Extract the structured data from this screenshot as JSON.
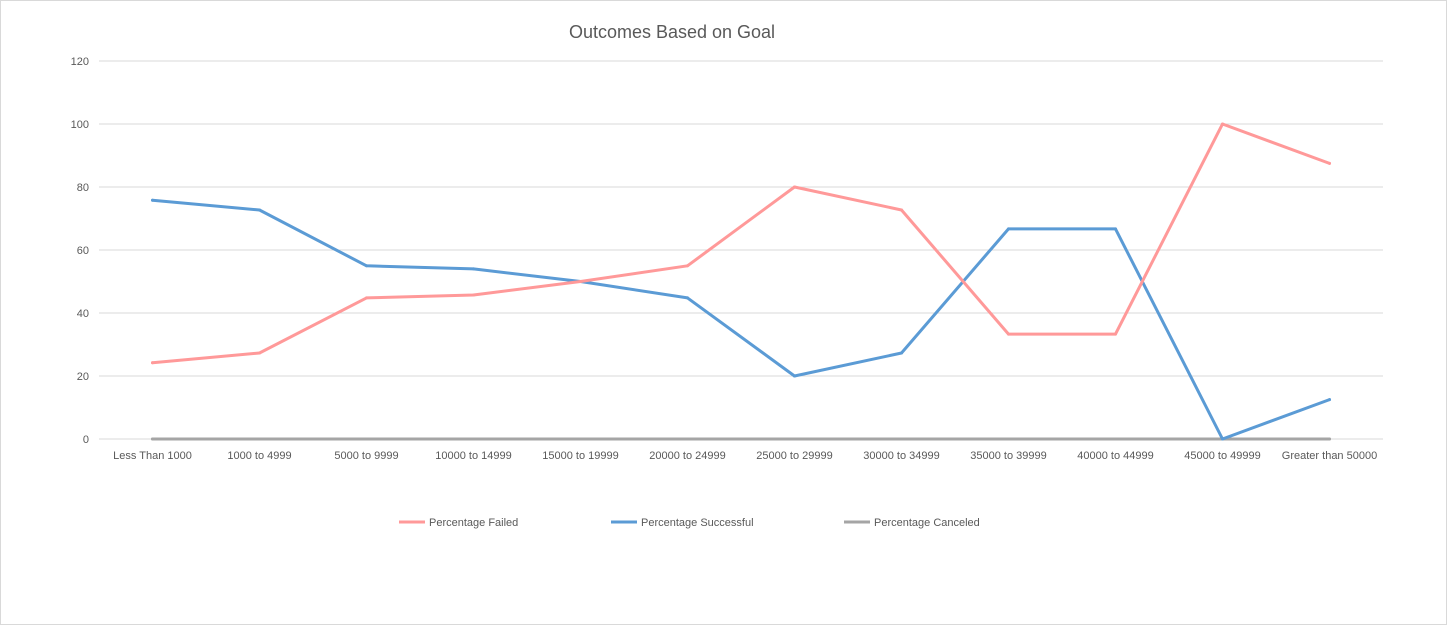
{
  "chart_data": {
    "type": "line",
    "title": "Outcomes Based on Goal",
    "xlabel": "",
    "ylabel": "",
    "ylim": [
      0,
      120
    ],
    "yticks": [
      0,
      20,
      40,
      60,
      80,
      100,
      120
    ],
    "grid": true,
    "legend_position": "bottom",
    "categories": [
      "Less Than 1000",
      "1000 to 4999",
      "5000 to 9999",
      "10000 to 14999",
      "15000 to 19999",
      "20000 to 24999",
      "25000 to 29999",
      "30000 to 34999",
      "35000 to 39999",
      "40000 to 44999",
      "45000 to 49999",
      "Greater than 50000"
    ],
    "series": [
      {
        "name": "Percentage Failed",
        "color": "#ff9999",
        "values": [
          24.2,
          27.3,
          44.8,
          45.7,
          50,
          55,
          80,
          72.7,
          33.3,
          33.3,
          100,
          87.5
        ]
      },
      {
        "name": "Percentage Successful",
        "color": "#5b9bd5",
        "values": [
          75.8,
          72.7,
          55,
          54,
          50,
          44.8,
          20,
          27.3,
          66.7,
          66.7,
          0,
          12.5
        ]
      },
      {
        "name": "Percentage Canceled",
        "color": "#a5a5a5",
        "values": [
          0,
          0,
          0,
          0,
          0,
          0,
          0,
          0,
          0,
          0,
          0,
          0
        ]
      }
    ]
  }
}
